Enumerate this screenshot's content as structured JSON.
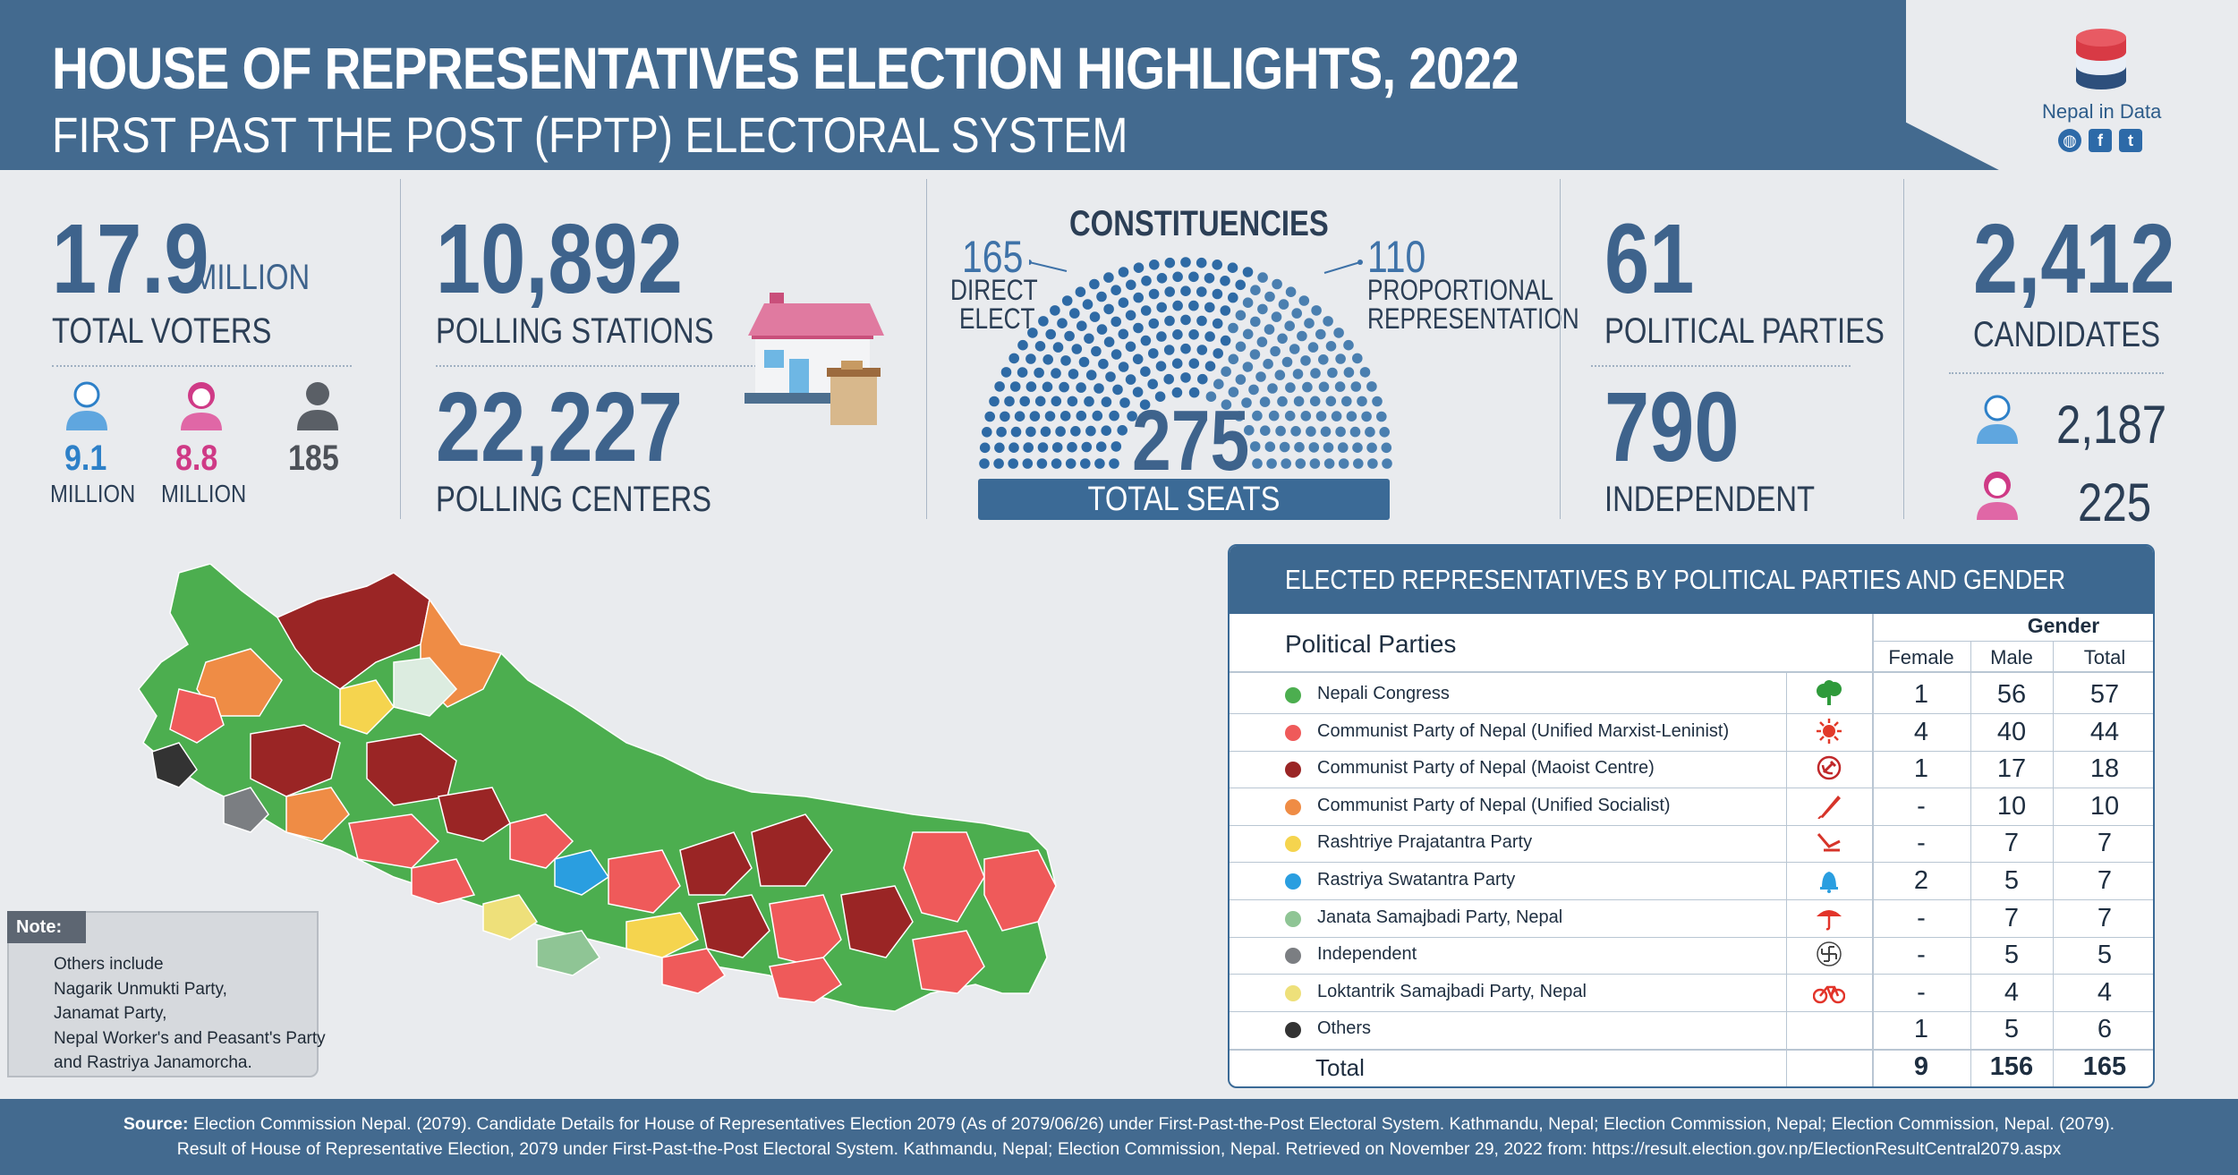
{
  "header": {
    "title": "HOUSE OF REPRESENTATIVES ELECTION HIGHLIGHTS, 2022",
    "subtitle": "FIRST PAST THE POST (FPTP) ELECTORAL SYSTEM",
    "logo_text": "Nepal in Data"
  },
  "voters": {
    "total": "17.9",
    "total_unit": "MILLION",
    "label": "TOTAL VOTERS",
    "male": "9.1",
    "male_unit": "MILLION",
    "female": "8.8",
    "female_unit": "MILLION",
    "other": "185"
  },
  "polling": {
    "stations": "10,892",
    "stations_label": "POLLING STATIONS",
    "centers": "22,227",
    "centers_label": "POLLING CENTERS"
  },
  "constituencies": {
    "title": "CONSTITUENCIES",
    "direct_num": "165",
    "direct_label_1": "DIRECT",
    "direct_label_2": "ELECT",
    "pr_num": "110",
    "pr_label_1": "PROPORTIONAL",
    "pr_label_2": "REPRESENTATION",
    "total": "275",
    "total_label": "TOTAL SEATS",
    "direct_color": "#2e6aa5",
    "pr_color": "#4a7fb0"
  },
  "parties": {
    "count": "61",
    "count_label": "POLITICAL PARTIES",
    "independent": "790",
    "independent_label": "INDEPENDENT"
  },
  "candidates": {
    "total": "2,412",
    "label": "CANDIDATES",
    "male": "2,187",
    "female": "225"
  },
  "table": {
    "title": "ELECTED REPRESENTATIVES BY POLITICAL PARTIES AND GENDER",
    "col_parties": "Political Parties",
    "col_gender": "Gender",
    "col_female": "Female",
    "col_male": "Male",
    "col_total": "Total",
    "rows": [
      {
        "party": "Nepali Congress",
        "color": "#4cae4f",
        "symbol": "tree-icon",
        "female": "1",
        "male": "56",
        "total": "57"
      },
      {
        "party": "Communist Party of Nepal (Unified Marxist-Leninist)",
        "color": "#ef5a5a",
        "symbol": "sun-icon",
        "female": "4",
        "male": "40",
        "total": "44"
      },
      {
        "party": "Communist Party of Nepal (Maoist Centre)",
        "color": "#9a2525",
        "symbol": "hammer-sickle-icon",
        "female": "1",
        "male": "17",
        "total": "18"
      },
      {
        "party": "Communist Party of Nepal (Unified Socialist)",
        "color": "#ef8c45",
        "symbol": "pen-icon",
        "female": "-",
        "male": "10",
        "total": "10"
      },
      {
        "party": "Rashtriye Prajatantra Party",
        "color": "#f5d44e",
        "symbol": "plough-icon",
        "female": "-",
        "male": "7",
        "total": "7"
      },
      {
        "party": "Rastriya Swatantra Party",
        "color": "#2a9ee0",
        "symbol": "bell-icon",
        "female": "2",
        "male": "5",
        "total": "7"
      },
      {
        "party": "Janata Samajbadi Party, Nepal",
        "color": "#8fc595",
        "symbol": "umbrella-icon",
        "female": "-",
        "male": "7",
        "total": "7"
      },
      {
        "party": "Independent",
        "color": "#7b7e82",
        "symbol": "swastika-icon",
        "female": "-",
        "male": "5",
        "total": "5"
      },
      {
        "party": "Loktantrik Samajbadi Party, Nepal",
        "color": "#eee07a",
        "symbol": "bicycle-icon",
        "female": "-",
        "male": "4",
        "total": "4"
      },
      {
        "party": "Others",
        "color": "#333333",
        "symbol": "",
        "female": "1",
        "male": "5",
        "total": "6"
      }
    ],
    "total_row": {
      "label": "Total",
      "female": "9",
      "male": "156",
      "total": "165"
    }
  },
  "note": {
    "title": "Note:",
    "lines": [
      "Others include",
      "Nagarik Unmukti Party,",
      "Janamat Party,",
      "Nepal Worker's and Peasant's Party",
      "and Rastriya Janamorcha."
    ]
  },
  "footer": {
    "source_label": "Source:",
    "line1": "Election Commission Nepal. (2079). Candidate Details for House of Representatives Election 2079 (As of 2079/06/26) under First-Past-the-Post Electoral System. Kathmandu, Nepal; Election Commission, Nepal; Election Commission, Nepal. (2079).",
    "line2": "Result of House of Representative Election, 2079 under First-Past-the-Post Electoral System. Kathmandu, Nepal; Election Commission, Nepal. Retrieved on November 29, 2022 from: https://result.election.gov.np/ElectionResultCentral2079.aspx"
  }
}
